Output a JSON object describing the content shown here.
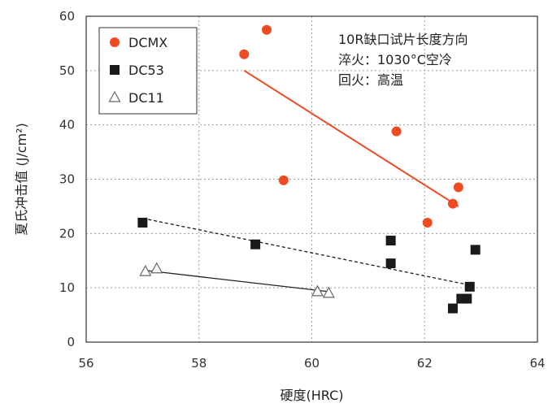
{
  "chart_data": {
    "type": "scatter",
    "xlabel": "硬度(HRC)",
    "ylabel": "夏氏冲击值 (J/cm²)",
    "xlim": [
      56,
      64
    ],
    "ylim": [
      0,
      60
    ],
    "xticks": [
      "56",
      "58",
      "60",
      "62",
      "64"
    ],
    "yticks": [
      "0",
      "10",
      "20",
      "30",
      "40",
      "50",
      "60"
    ],
    "grid": true,
    "legend_position": "top-left",
    "annotation": [
      "10R缺口试片长度方向",
      "淬火：1030°C空冷",
      "回火：高温"
    ],
    "series": [
      {
        "name": "DCMX",
        "marker": "circle",
        "color": "#f04a23",
        "points": [
          [
            58.8,
            53
          ],
          [
            59.2,
            57.5
          ],
          [
            59.5,
            29.8
          ],
          [
            61.5,
            38.8
          ],
          [
            62.05,
            22
          ],
          [
            62.5,
            25.5
          ],
          [
            62.6,
            28.5
          ]
        ],
        "trend": {
          "style": "solid",
          "from": [
            58.8,
            50
          ],
          "to": [
            62.6,
            25
          ]
        }
      },
      {
        "name": "DC53",
        "marker": "square",
        "color": "#1a1a1a",
        "points": [
          [
            57.0,
            22
          ],
          [
            59.0,
            18
          ],
          [
            61.4,
            18.7
          ],
          [
            61.4,
            14.5
          ],
          [
            62.5,
            6.2
          ],
          [
            62.65,
            8
          ],
          [
            62.75,
            8
          ],
          [
            62.8,
            10.2
          ],
          [
            62.9,
            17
          ]
        ],
        "trend": {
          "style": "dashed",
          "from": [
            57.0,
            22.8
          ],
          "to": [
            62.8,
            10.5
          ]
        }
      },
      {
        "name": "DC11",
        "marker": "triangle",
        "color": "#666666",
        "points": [
          [
            57.05,
            13
          ],
          [
            57.25,
            13.5
          ],
          [
            60.1,
            9.3
          ],
          [
            60.3,
            9
          ]
        ],
        "trend": {
          "style": "solid",
          "from": [
            57.05,
            13.2
          ],
          "to": [
            60.3,
            9.3
          ]
        }
      }
    ]
  }
}
